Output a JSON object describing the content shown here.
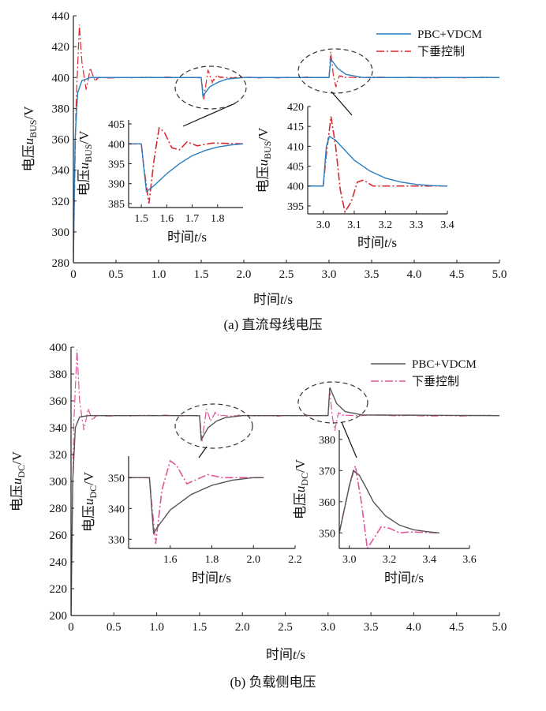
{
  "figure": {
    "caption_a": "(a) 直流母线电压",
    "caption_b": "(b) 负载侧电压"
  },
  "colors": {
    "pbc_a": "#2a7ec0",
    "droop_a": "#d9282f",
    "pbc_b": "#555555",
    "droop_b": "#e0559a",
    "ellipse": "#333333"
  },
  "chart_data": [
    {
      "id": "a-main",
      "type": "line",
      "xlabel": "时间t/s",
      "ylabel": "电压u_BUS/V",
      "xlim": [
        0,
        5.0
      ],
      "ylim": [
        280,
        440
      ],
      "xticks": [
        "0",
        "0.5",
        "1.0",
        "1.5",
        "2.0",
        "2.5",
        "3.0",
        "3.5",
        "4.0",
        "4.5",
        "5.0"
      ],
      "yticks": [
        "280",
        "300",
        "320",
        "340",
        "360",
        "380",
        "400",
        "420",
        "440"
      ],
      "legend": {
        "placement": "top-right",
        "entries": [
          "PBC+VDCM",
          "下垂控制"
        ]
      },
      "series": [
        {
          "name": "PBC+VDCM",
          "style": "solid",
          "x": [
            0,
            0.02,
            0.05,
            0.1,
            0.2,
            0.3,
            1.5,
            1.52,
            1.6,
            1.7,
            1.8,
            2.0,
            3.0,
            3.02,
            3.1,
            3.2,
            3.4,
            5.0
          ],
          "y": [
            280,
            360,
            390,
            398,
            400,
            400,
            400,
            388,
            394,
            397,
            399,
            400,
            400,
            412,
            406,
            402,
            400,
            400
          ]
        },
        {
          "name": "下垂控制",
          "style": "dashdot",
          "x": [
            0,
            0.03,
            0.07,
            0.1,
            0.15,
            0.2,
            0.25,
            0.3,
            1.5,
            1.53,
            1.58,
            1.63,
            1.68,
            1.75,
            2.0,
            3.0,
            3.02,
            3.05,
            3.08,
            3.12,
            3.2,
            5.0
          ],
          "y": [
            280,
            380,
            434,
            410,
            392,
            406,
            398,
            400,
            400,
            386,
            405,
            397,
            401,
            400,
            400,
            400,
            417,
            402,
            394,
            401,
            400,
            400
          ]
        }
      ]
    },
    {
      "id": "a-inset1",
      "type": "line",
      "xlabel": "时间t/s",
      "ylabel": "电压u_BUS/V",
      "xlim": [
        1.45,
        1.9
      ],
      "ylim": [
        384,
        406
      ],
      "xticks": [
        "1.5",
        "1.6",
        "1.7",
        "1.8"
      ],
      "yticks": [
        "385",
        "390",
        "395",
        "400",
        "405"
      ],
      "series": [
        {
          "name": "PBC+VDCM",
          "style": "solid",
          "x": [
            1.45,
            1.5,
            1.52,
            1.55,
            1.6,
            1.65,
            1.7,
            1.75,
            1.8,
            1.85,
            1.9
          ],
          "y": [
            400,
            400,
            388,
            389.5,
            392.5,
            395,
            397,
            398.3,
            399.2,
            399.7,
            400
          ]
        },
        {
          "name": "下垂控制",
          "style": "dashdot",
          "x": [
            1.45,
            1.5,
            1.51,
            1.53,
            1.55,
            1.57,
            1.59,
            1.62,
            1.65,
            1.68,
            1.72,
            1.78,
            1.9
          ],
          "y": [
            400,
            400,
            394,
            385,
            396,
            404,
            403,
            399,
            398.5,
            400.5,
            399.5,
            400.2,
            400
          ]
        }
      ]
    },
    {
      "id": "a-inset2",
      "type": "line",
      "xlabel": "时间t/s",
      "ylabel": "电压u_BUS/V",
      "xlim": [
        2.95,
        3.4
      ],
      "ylim": [
        393,
        420
      ],
      "xticks": [
        "3.0",
        "3.1",
        "3.2",
        "3.3",
        "3.4"
      ],
      "yticks": [
        "395",
        "400",
        "405",
        "410",
        "415",
        "420"
      ],
      "series": [
        {
          "name": "PBC+VDCM",
          "style": "solid",
          "x": [
            2.95,
            3.0,
            3.01,
            3.02,
            3.04,
            3.07,
            3.1,
            3.15,
            3.2,
            3.25,
            3.3,
            3.35,
            3.4
          ],
          "y": [
            400,
            400,
            410,
            412.5,
            411.5,
            409,
            406.5,
            403.8,
            402,
            401,
            400.4,
            400.1,
            400
          ]
        },
        {
          "name": "下垂控制",
          "style": "dashdot",
          "x": [
            2.95,
            3.0,
            3.01,
            3.025,
            3.04,
            3.055,
            3.07,
            3.09,
            3.11,
            3.13,
            3.16,
            3.2,
            3.4
          ],
          "y": [
            400,
            400,
            408,
            417.5,
            410,
            399,
            393.5,
            396,
            401,
            401.5,
            400,
            400,
            400
          ]
        }
      ]
    },
    {
      "id": "b-main",
      "type": "line",
      "xlabel": "时间t/s",
      "ylabel": "电压u_DC/V",
      "xlim": [
        0,
        5.0
      ],
      "ylim": [
        200,
        400
      ],
      "xticks": [
        "0",
        "0.5",
        "1.0",
        "1.5",
        "2.0",
        "2.5",
        "3.0",
        "3.5",
        "4.0",
        "4.5",
        "5.0"
      ],
      "yticks": [
        "200",
        "220",
        "240",
        "260",
        "280",
        "300",
        "320",
        "340",
        "360",
        "380",
        "400"
      ],
      "legend": {
        "placement": "top-right",
        "entries": [
          "PBC+VDCM",
          "下垂控制"
        ]
      },
      "series": [
        {
          "name": "PBC+VDCM",
          "style": "solid",
          "x": [
            0,
            0.02,
            0.05,
            0.1,
            0.2,
            0.3,
            1.5,
            1.52,
            1.6,
            1.7,
            1.8,
            2.0,
            3.0,
            3.02,
            3.1,
            3.2,
            3.4,
            5.0
          ],
          "y": [
            200,
            300,
            340,
            348,
            349,
            349,
            349,
            331,
            340,
            345,
            347.5,
            349,
            349,
            370,
            358,
            352,
            349.5,
            349
          ]
        },
        {
          "name": "下垂控制",
          "style": "dashdot",
          "x": [
            0,
            0.03,
            0.07,
            0.1,
            0.15,
            0.2,
            0.25,
            0.3,
            1.5,
            1.53,
            1.58,
            1.63,
            1.68,
            1.75,
            2.0,
            3.0,
            3.02,
            3.05,
            3.08,
            3.12,
            3.2,
            5.0
          ],
          "y": [
            200,
            340,
            398,
            360,
            338,
            354,
            346,
            349,
            349,
            330,
            354,
            345,
            351,
            349,
            349,
            349,
            367,
            348,
            338,
            351,
            349,
            349
          ]
        }
      ]
    },
    {
      "id": "b-inset1",
      "type": "line",
      "xlabel": "时间t/s",
      "ylabel": "电压u_DC/V",
      "xlim": [
        1.4,
        2.2
      ],
      "ylim": [
        327,
        357
      ],
      "xticks": [
        "1.6",
        "1.8",
        "2.0",
        "2.2"
      ],
      "yticks": [
        "330",
        "340",
        "350"
      ],
      "series": [
        {
          "name": "PBC+VDCM",
          "style": "solid",
          "x": [
            1.4,
            1.5,
            1.52,
            1.55,
            1.6,
            1.7,
            1.8,
            1.9,
            2.0,
            2.05
          ],
          "y": [
            350,
            350,
            332,
            335,
            339.5,
            344.5,
            347.5,
            349.2,
            350,
            350
          ]
        },
        {
          "name": "下垂控制",
          "style": "dashdot",
          "x": [
            1.4,
            1.5,
            1.51,
            1.53,
            1.56,
            1.6,
            1.63,
            1.68,
            1.73,
            1.78,
            1.85,
            2.05
          ],
          "y": [
            350,
            350,
            342,
            328.5,
            346,
            355.5,
            354,
            348,
            349.5,
            351,
            350,
            350
          ]
        }
      ]
    },
    {
      "id": "b-inset2",
      "type": "line",
      "xlabel": "时间t/s",
      "ylabel": "电压u_DC/V",
      "xlim": [
        2.95,
        3.6
      ],
      "ylim": [
        345,
        383
      ],
      "xticks": [
        "3.0",
        "3.2",
        "3.4",
        "3.6"
      ],
      "yticks": [
        "350",
        "360",
        "370",
        "380"
      ],
      "series": [
        {
          "name": "PBC+VDCM",
          "style": "solid",
          "x": [
            2.95,
            3.0,
            3.02,
            3.05,
            3.08,
            3.12,
            3.18,
            3.25,
            3.32,
            3.4,
            3.45
          ],
          "y": [
            350,
            365,
            370,
            368.5,
            365,
            360,
            355.5,
            352.5,
            351,
            350.3,
            350
          ]
        },
        {
          "name": "下垂控制",
          "style": "dashdot",
          "x": [
            2.95,
            3.0,
            3.03,
            3.06,
            3.09,
            3.12,
            3.16,
            3.2,
            3.25,
            3.3,
            3.45
          ],
          "y": [
            350,
            365,
            371.5,
            360,
            345,
            348,
            352,
            351.5,
            350,
            350.3,
            350
          ]
        }
      ]
    }
  ]
}
